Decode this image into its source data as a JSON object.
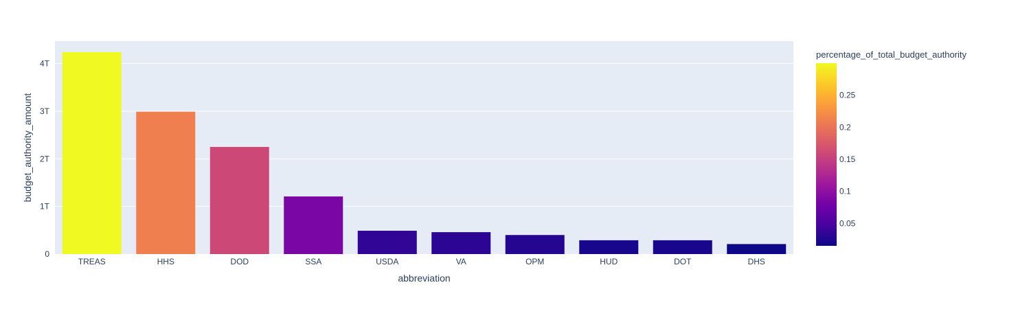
{
  "chart_data": {
    "type": "bar",
    "categories": [
      "TREAS",
      "HHS",
      "DOD",
      "SSA",
      "USDA",
      "VA",
      "OPM",
      "HUD",
      "DOT",
      "DHS"
    ],
    "values": [
      4.24,
      2.99,
      2.25,
      1.21,
      0.49,
      0.46,
      0.4,
      0.29,
      0.29,
      0.21
    ],
    "color_values": [
      0.3,
      0.21,
      0.159,
      0.085,
      0.035,
      0.033,
      0.028,
      0.021,
      0.021,
      0.015
    ],
    "title": "",
    "xlabel": "abbreviation",
    "ylabel": "budget_authority_amount",
    "ylim": [
      0,
      4.47
    ],
    "y_ticks": [
      0,
      1,
      2,
      3,
      4
    ],
    "y_tick_labels": [
      "0",
      "1T",
      "2T",
      "3T",
      "4T"
    ],
    "grid": true,
    "colorbar": {
      "title": "percentage_of_total_budget_authority",
      "range": [
        0.015,
        0.3
      ],
      "ticks": [
        0.05,
        0.1,
        0.15,
        0.2,
        0.25
      ],
      "tick_labels": [
        "0.05",
        "0.1",
        "0.15",
        "0.2",
        "0.25"
      ],
      "colorscale": [
        "#0d0887",
        "#46039f",
        "#7201a8",
        "#9c179e",
        "#bd3786",
        "#d8576b",
        "#ed7953",
        "#fb9f3a",
        "#fdca26",
        "#f0f921"
      ]
    },
    "plot_background": "#e5ecf6"
  }
}
